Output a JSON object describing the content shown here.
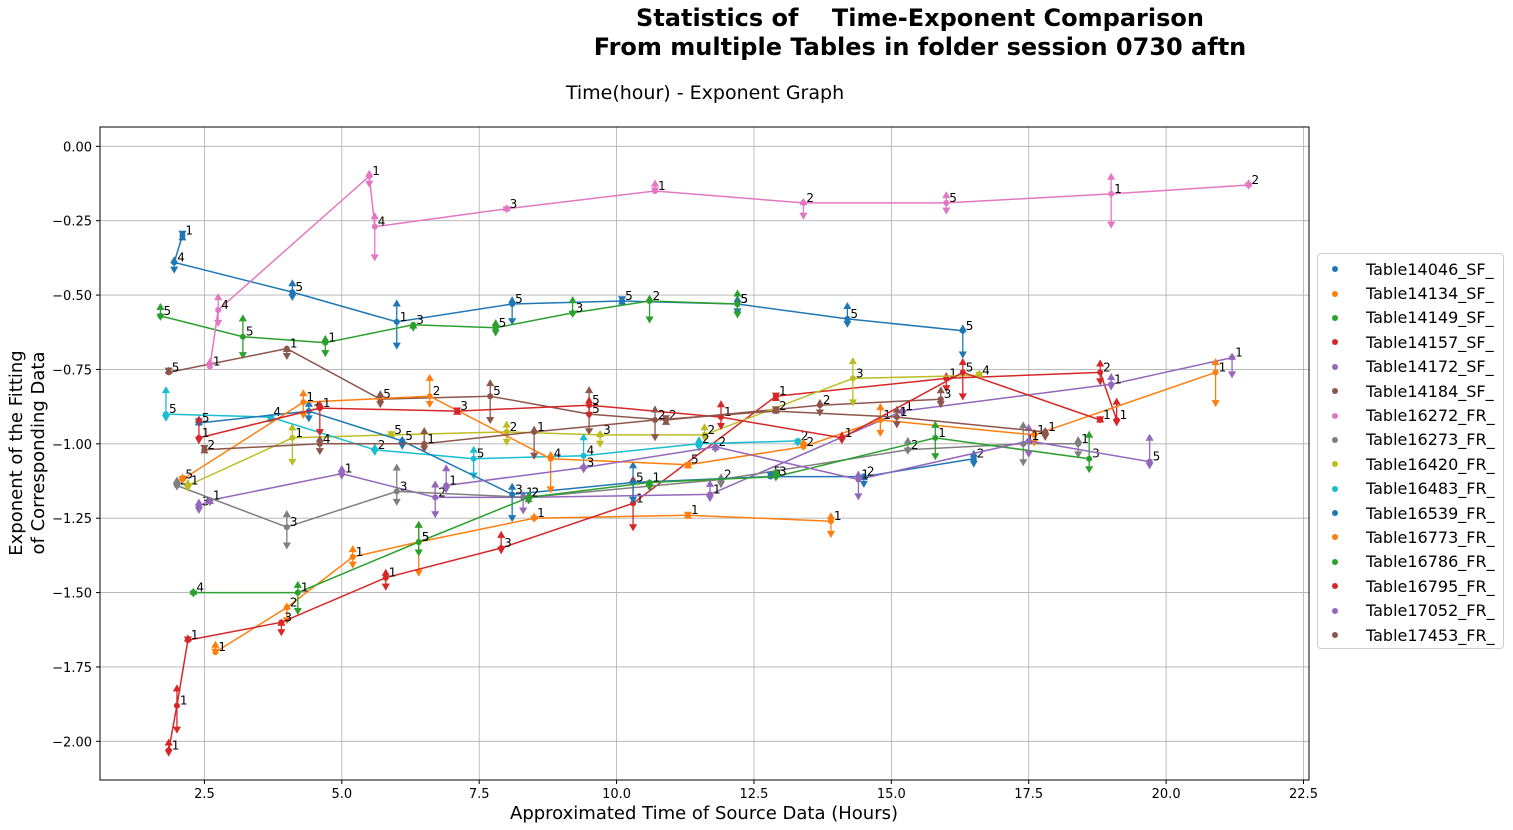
{
  "page": {
    "suptitle": "Statistics of    Time-Exponent Comparison\nFrom multiple Tables in folder session 0730 aftn",
    "axes_title": "Time(hour) - Exponent Graph"
  },
  "chart_data": {
    "type": "line",
    "title": "Time(hour) - Exponent Graph",
    "xlabel": "Approximated Time of Source Data (Hours)",
    "ylabel": "Exponent of the Fitting\nof Corresponding Data",
    "xlim": [
      0.6,
      22.6
    ],
    "ylim": [
      -2.13,
      0.065
    ],
    "xticks": [
      2.5,
      5.0,
      7.5,
      10.0,
      12.5,
      15.0,
      17.5,
      20.0,
      22.5
    ],
    "xtick_labels": [
      "2.5",
      "5.0",
      "7.5",
      "10.0",
      "12.5",
      "15.0",
      "17.5",
      "20.0",
      "22.5"
    ],
    "yticks": [
      -2.0,
      -1.75,
      -1.5,
      -1.25,
      -1.0,
      -0.75,
      -0.5,
      -0.25,
      0.0
    ],
    "ytick_labels": [
      "−2.00",
      "−1.75",
      "−1.50",
      "−1.25",
      "−1.00",
      "−0.75",
      "−0.50",
      "−0.25",
      "0.00"
    ],
    "grid": true,
    "legend_position": "center-right outside",
    "series": [
      {
        "name": "Table14046_SF_",
        "color": "#1f77b4",
        "points": [
          [
            2.1,
            -0.3,
            "1"
          ],
          [
            1.95,
            -0.39,
            "4"
          ],
          [
            4.1,
            -0.49,
            "5"
          ],
          [
            6.0,
            -0.59,
            "1"
          ],
          [
            8.1,
            -0.53,
            "5"
          ],
          [
            10.1,
            -0.52,
            "5"
          ],
          [
            12.2,
            -0.53,
            "5"
          ],
          [
            14.2,
            -0.58,
            "5"
          ],
          [
            16.3,
            -0.62,
            "5"
          ]
        ]
      },
      {
        "name": "Table14134_SF_",
        "color": "#ff7f0e",
        "points": [
          [
            2.7,
            -1.7,
            "1"
          ],
          [
            4.0,
            -1.55,
            "2"
          ],
          [
            5.2,
            -1.38,
            "1"
          ],
          [
            6.4,
            -1.33,
            "5"
          ],
          [
            8.5,
            -1.25,
            "1"
          ],
          [
            11.3,
            -1.24,
            "1"
          ],
          [
            13.9,
            -1.26,
            "1"
          ]
        ]
      },
      {
        "name": "Table14149_SF_",
        "color": "#2ca02c",
        "points": [
          [
            1.7,
            -0.57,
            "5"
          ],
          [
            3.2,
            -0.64,
            "5"
          ],
          [
            4.7,
            -0.66,
            "1"
          ],
          [
            6.3,
            -0.6,
            "3"
          ],
          [
            7.8,
            -0.61,
            "5"
          ],
          [
            9.2,
            -0.56,
            "3"
          ],
          [
            10.6,
            -0.52,
            "2"
          ],
          [
            12.2,
            -0.53,
            "5"
          ]
        ]
      },
      {
        "name": "Table14157_SF_",
        "color": "#d62728",
        "points": [
          [
            1.85,
            -2.03,
            "1"
          ],
          [
            2.0,
            -1.88,
            "1"
          ],
          [
            2.2,
            -1.66,
            "1"
          ],
          [
            3.9,
            -1.6,
            "3"
          ],
          [
            5.8,
            -1.45,
            "1"
          ],
          [
            7.9,
            -1.35,
            "3"
          ],
          [
            10.3,
            -1.2,
            "1"
          ],
          [
            12.9,
            -0.84,
            "1"
          ],
          [
            16.0,
            -0.78,
            "1"
          ],
          [
            18.8,
            -0.76,
            "2"
          ],
          [
            19.1,
            -0.92,
            "1"
          ]
        ]
      },
      {
        "name": "Table14172_SF_",
        "color": "#9467bd",
        "points": [
          [
            2.4,
            -1.21,
            "3"
          ],
          [
            2.6,
            -1.19,
            "1"
          ],
          [
            5.0,
            -1.1,
            "1"
          ],
          [
            6.7,
            -1.18,
            "2"
          ],
          [
            8.3,
            -1.18,
            "1"
          ],
          [
            11.7,
            -1.17,
            "1"
          ],
          [
            15.2,
            -0.89,
            "1"
          ],
          [
            19.0,
            -0.8,
            "1"
          ],
          [
            21.2,
            -0.71,
            "1"
          ]
        ]
      },
      {
        "name": "Table14184_SF_",
        "color": "#8c564b",
        "points": [
          [
            1.85,
            -0.76,
            "5"
          ],
          [
            4.0,
            -0.68,
            "1"
          ],
          [
            5.7,
            -0.85,
            "5"
          ],
          [
            7.7,
            -0.84,
            "5"
          ],
          [
            9.5,
            -0.9,
            "5"
          ],
          [
            10.9,
            -0.92,
            "2"
          ],
          [
            13.7,
            -0.87,
            "2"
          ],
          [
            15.9,
            -0.85,
            "3"
          ]
        ]
      },
      {
        "name": "Table16272_FR_",
        "color": "#e377c2",
        "points": [
          [
            2.6,
            -0.74,
            "1"
          ],
          [
            2.75,
            -0.55,
            "4"
          ],
          [
            5.5,
            -0.1,
            "1"
          ],
          [
            5.6,
            -0.27,
            "4"
          ],
          [
            8.0,
            -0.21,
            "3"
          ],
          [
            10.7,
            -0.15,
            "1"
          ],
          [
            13.4,
            -0.19,
            "2"
          ],
          [
            16.0,
            -0.19,
            "5"
          ],
          [
            19.0,
            -0.16,
            "1"
          ],
          [
            21.5,
            -0.13,
            "2"
          ]
        ]
      },
      {
        "name": "Table16273_FR_",
        "color": "#7f7f7f",
        "points": [
          [
            2.0,
            -1.14,
            "2"
          ],
          [
            4.0,
            -1.28,
            "3"
          ],
          [
            6.0,
            -1.16,
            "3"
          ],
          [
            8.4,
            -1.18,
            "2"
          ],
          [
            11.9,
            -1.12,
            "2"
          ],
          [
            15.3,
            -1.02,
            "2"
          ],
          [
            17.4,
            -1.0,
            "1"
          ],
          [
            18.4,
            -1.0,
            "1"
          ]
        ]
      },
      {
        "name": "Table16420_FR_",
        "color": "#bcbd22",
        "points": [
          [
            2.2,
            -1.14,
            "1"
          ],
          [
            4.1,
            -0.98,
            "1"
          ],
          [
            5.9,
            -0.97,
            "5"
          ],
          [
            8.0,
            -0.96,
            "2"
          ],
          [
            9.7,
            -0.97,
            "3"
          ],
          [
            11.6,
            -0.97,
            "2"
          ],
          [
            14.3,
            -0.78,
            "3"
          ],
          [
            16.6,
            -0.77,
            "4"
          ]
        ]
      },
      {
        "name": "Table16483_FR_",
        "color": "#17becf",
        "points": [
          [
            1.8,
            -0.9,
            "5"
          ],
          [
            3.7,
            -0.91,
            "4"
          ],
          [
            5.6,
            -1.02,
            "2"
          ],
          [
            7.4,
            -1.05,
            "5"
          ],
          [
            9.4,
            -1.04,
            "4"
          ],
          [
            11.5,
            -1.0,
            "2"
          ],
          [
            13.3,
            -0.99,
            "2"
          ]
        ]
      },
      {
        "name": "Table16539_FR_",
        "color": "#1f77b4",
        "points": [
          [
            2.4,
            -0.93,
            "5"
          ],
          [
            4.4,
            -0.89,
            "3"
          ],
          [
            6.1,
            -0.99,
            "5"
          ],
          [
            8.1,
            -1.17,
            "3"
          ],
          [
            10.3,
            -1.13,
            "5"
          ],
          [
            12.8,
            -1.11,
            "5"
          ],
          [
            14.5,
            -1.11,
            "2"
          ],
          [
            16.5,
            -1.05,
            "2"
          ]
        ]
      },
      {
        "name": "Table16773_FR_",
        "color": "#ff7f0e",
        "points": [
          [
            2.1,
            -1.12,
            "5"
          ],
          [
            4.3,
            -0.86,
            "1"
          ],
          [
            6.6,
            -0.84,
            "2"
          ],
          [
            8.8,
            -1.05,
            "4"
          ],
          [
            11.3,
            -1.07,
            "5"
          ],
          [
            13.4,
            -1.01,
            "2"
          ],
          [
            14.8,
            -0.92,
            "1"
          ],
          [
            17.6,
            -0.97,
            "1"
          ],
          [
            20.9,
            -0.76,
            "1"
          ]
        ]
      },
      {
        "name": "Table16786_FR_",
        "color": "#2ca02c",
        "points": [
          [
            2.3,
            -1.5,
            "4"
          ],
          [
            4.2,
            -1.5,
            "1"
          ],
          [
            6.4,
            -1.33,
            "5"
          ],
          [
            8.4,
            -1.18,
            "2"
          ],
          [
            10.6,
            -1.13,
            "1"
          ],
          [
            12.9,
            -1.11,
            "3"
          ],
          [
            15.8,
            -0.98,
            "1"
          ],
          [
            18.6,
            -1.05,
            "3"
          ]
        ]
      },
      {
        "name": "Table16795_FR_",
        "color": "#d62728",
        "points": [
          [
            2.4,
            -0.98,
            "1"
          ],
          [
            4.6,
            -0.88,
            "1"
          ],
          [
            7.1,
            -0.89,
            "3"
          ],
          [
            9.5,
            -0.87,
            "5"
          ],
          [
            11.9,
            -0.91,
            "1"
          ],
          [
            14.1,
            -0.98,
            "1"
          ],
          [
            16.3,
            -0.76,
            "5"
          ],
          [
            18.8,
            -0.92,
            "1"
          ]
        ]
      },
      {
        "name": "Table17052_FR_",
        "color": "#9467bd",
        "points": [
          [
            6.9,
            -1.14,
            "1"
          ],
          [
            9.4,
            -1.08,
            "3"
          ],
          [
            11.8,
            -1.01,
            "2"
          ],
          [
            14.4,
            -1.12,
            "1"
          ],
          [
            17.5,
            -0.99,
            "1"
          ],
          [
            19.7,
            -1.06,
            "5"
          ]
        ]
      },
      {
        "name": "Table17453_FR_",
        "color": "#8c564b",
        "points": [
          [
            2.5,
            -1.02,
            "2"
          ],
          [
            4.6,
            -1.0,
            "4"
          ],
          [
            6.5,
            -1.0,
            "1"
          ],
          [
            8.5,
            -0.96,
            "1"
          ],
          [
            10.7,
            -0.92,
            "2"
          ],
          [
            12.9,
            -0.89,
            "2"
          ],
          [
            15.1,
            -0.91,
            "1"
          ],
          [
            17.8,
            -0.96,
            "1"
          ]
        ]
      }
    ]
  }
}
